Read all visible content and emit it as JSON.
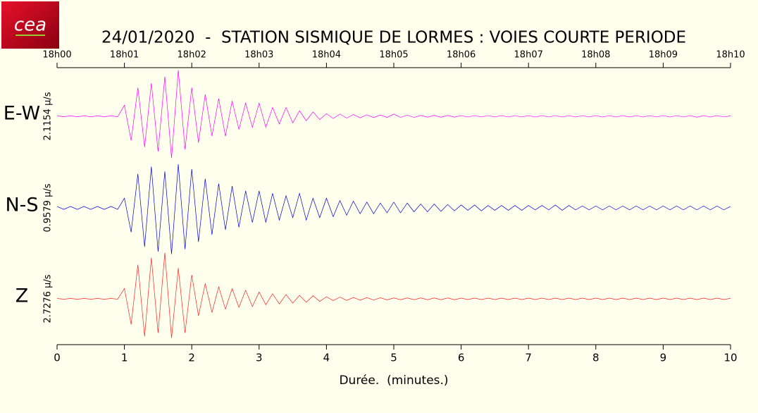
{
  "logo": "cea",
  "chart_data": {
    "type": "line",
    "title": "24/01/2020  -  STATION SISMIQUE DE LORMES : VOIES COURTE PERIODE",
    "x_label": "Durée.  (minutes.)",
    "xlim": [
      0,
      10
    ],
    "xticks": [
      0,
      1,
      2,
      3,
      4,
      5,
      6,
      7,
      8,
      9,
      10
    ],
    "x2ticks": [
      {
        "value": 0,
        "label": "18h00"
      },
      {
        "value": 1,
        "label": "18h01"
      },
      {
        "value": 2,
        "label": "18h02"
      },
      {
        "value": 3,
        "label": "18h03"
      },
      {
        "value": 4,
        "label": "18h04"
      },
      {
        "value": 5,
        "label": "18h05"
      },
      {
        "value": 6,
        "label": "18h06"
      },
      {
        "value": 7,
        "label": "18h07"
      },
      {
        "value": 8,
        "label": "18h08"
      },
      {
        "value": 9,
        "label": "18h09"
      },
      {
        "value": 10,
        "label": "18h10"
      }
    ],
    "x": [
      0,
      0.1,
      0.2,
      0.3,
      0.4,
      0.5,
      0.6,
      0.7,
      0.8,
      0.9,
      1,
      1.1,
      1.2,
      1.3,
      1.4,
      1.5,
      1.6,
      1.7,
      1.8,
      1.9,
      2,
      2.1,
      2.2,
      2.3,
      2.4,
      2.5,
      2.6,
      2.7,
      2.8,
      2.9,
      3,
      3.1,
      3.2,
      3.3,
      3.4,
      3.5,
      3.6,
      3.7,
      3.8,
      3.9,
      4,
      4.1,
      4.2,
      4.3,
      4.4,
      4.5,
      4.6,
      4.7,
      4.8,
      4.9,
      5,
      5.1,
      5.2,
      5.3,
      5.4,
      5.5,
      5.6,
      5.7,
      5.8,
      5.9,
      6,
      6.1,
      6.2,
      6.3,
      6.4,
      6.5,
      6.6,
      6.7,
      6.8,
      6.9,
      7,
      7.1,
      7.2,
      7.3,
      7.4,
      7.5,
      7.6,
      7.7,
      7.8,
      7.9,
      8,
      8.1,
      8.2,
      8.3,
      8.4,
      8.5,
      8.6,
      8.7,
      8.8,
      8.9,
      9,
      9.1,
      9.2,
      9.3,
      9.4,
      9.5,
      9.6,
      9.7,
      9.8,
      9.9,
      10
    ],
    "series": [
      {
        "name": "E-W",
        "color": "#ff00ff",
        "scale": {
          "value": 2.1154,
          "label": "2.1154 µ/s"
        },
        "values": [
          0.02,
          -0.02,
          0.02,
          -0.02,
          0.02,
          -0.02,
          0.02,
          -0.02,
          0.02,
          -0.02,
          0.5,
          -1.1,
          1.3,
          -1.4,
          1.5,
          -1.6,
          1.8,
          -1.9,
          2.1,
          -1.5,
          1.3,
          -1.2,
          1.0,
          -0.9,
          0.8,
          -0.9,
          0.7,
          -0.6,
          0.6,
          -0.5,
          0.6,
          -0.5,
          0.4,
          -0.35,
          0.4,
          -0.3,
          0.25,
          -0.2,
          0.2,
          -0.15,
          0.12,
          -0.1,
          0.1,
          -0.08,
          0.08,
          -0.07,
          0.07,
          -0.06,
          0.06,
          -0.05,
          0.1,
          -0.05,
          0.05,
          -0.05,
          0.04,
          -0.04,
          0.04,
          -0.04,
          0.04,
          -0.04,
          0.03,
          -0.03,
          0.03,
          -0.03,
          0.03,
          -0.03,
          0.03,
          -0.03,
          0.03,
          -0.03,
          0.03,
          -0.03,
          0.03,
          -0.03,
          0.03,
          -0.03,
          0.03,
          -0.03,
          0.03,
          -0.03,
          0.03,
          -0.03,
          0.03,
          -0.03,
          0.03,
          -0.03,
          0.03,
          -0.03,
          0.03,
          -0.03,
          0.03,
          -0.03,
          0.03,
          -0.03,
          0.03,
          -0.04,
          0.03,
          -0.03,
          0.03,
          -0.03,
          0.02
        ]
      },
      {
        "name": "N-S",
        "color": "#0000dd",
        "scale": {
          "value": 0.9579,
          "label": "0.9579 µ/s"
        },
        "values": [
          0.03,
          -0.03,
          0.03,
          -0.03,
          0.03,
          -0.03,
          0.03,
          -0.03,
          0.03,
          -0.03,
          0.2,
          -0.5,
          0.7,
          -0.8,
          0.85,
          -0.9,
          0.75,
          -0.95,
          0.9,
          -0.85,
          0.8,
          -0.7,
          0.6,
          -0.55,
          0.5,
          -0.45,
          0.45,
          -0.4,
          0.35,
          -0.3,
          0.35,
          -0.3,
          0.3,
          -0.25,
          0.25,
          -0.2,
          0.3,
          -0.25,
          0.2,
          -0.2,
          0.2,
          -0.18,
          0.15,
          -0.15,
          0.14,
          -0.12,
          0.12,
          -0.12,
          0.1,
          -0.1,
          0.12,
          -0.1,
          0.1,
          -0.08,
          0.08,
          -0.08,
          0.08,
          -0.07,
          0.07,
          -0.06,
          0.06,
          -0.05,
          0.06,
          -0.06,
          0.05,
          -0.05,
          0.05,
          -0.05,
          0.05,
          -0.05,
          0.05,
          -0.04,
          0.05,
          -0.04,
          0.06,
          -0.05,
          0.05,
          -0.04,
          0.04,
          -0.04,
          0.04,
          -0.04,
          0.04,
          -0.04,
          0.04,
          -0.04,
          0.04,
          -0.04,
          0.04,
          -0.04,
          0.04,
          -0.04,
          0.04,
          -0.04,
          0.04,
          -0.04,
          0.04,
          -0.04,
          0.04,
          -0.04,
          0.03
        ]
      },
      {
        "name": "Z",
        "color": "#ff2020",
        "scale": {
          "value": 2.7276,
          "label": "2.7276 µ/s"
        },
        "values": [
          0.02,
          -0.02,
          0.02,
          -0.02,
          0.02,
          -0.02,
          0.02,
          -0.02,
          0.02,
          -0.02,
          0.6,
          -1.5,
          2.0,
          -2.2,
          2.4,
          -2.0,
          2.7,
          -2.3,
          1.8,
          -2.0,
          1.4,
          -1.0,
          0.9,
          -0.8,
          0.7,
          -0.6,
          0.6,
          -0.5,
          0.5,
          -0.45,
          0.4,
          -0.35,
          0.3,
          -0.3,
          0.25,
          -0.25,
          0.2,
          -0.2,
          0.18,
          -0.15,
          0.12,
          -0.1,
          0.1,
          -0.09,
          0.08,
          -0.08,
          0.07,
          -0.07,
          0.06,
          -0.06,
          0.05,
          -0.05,
          0.05,
          -0.05,
          0.05,
          -0.05,
          0.05,
          -0.05,
          0.05,
          -0.05,
          0.04,
          -0.04,
          0.04,
          -0.04,
          0.04,
          -0.04,
          0.04,
          -0.04,
          0.04,
          -0.04,
          0.04,
          -0.04,
          0.04,
          -0.04,
          0.04,
          -0.04,
          0.04,
          -0.04,
          0.04,
          -0.04,
          0.04,
          -0.04,
          0.04,
          -0.04,
          0.04,
          -0.04,
          0.04,
          -0.04,
          0.04,
          -0.04,
          0.04,
          -0.04,
          0.04,
          -0.04,
          0.04,
          -0.04,
          0.04,
          -0.04,
          0.04,
          -0.04,
          0.03
        ]
      }
    ]
  }
}
